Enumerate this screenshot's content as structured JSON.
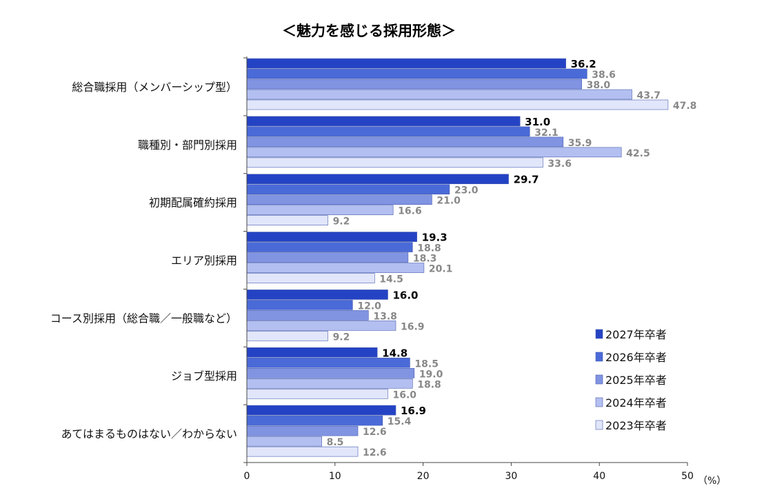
{
  "chart_data": {
    "type": "bar",
    "orientation": "horizontal",
    "title": "＜魅力を感じる採用形態＞",
    "unit_label": "（%）",
    "xlim": [
      0,
      50
    ],
    "xticks": [
      0,
      10,
      20,
      30,
      40,
      50
    ],
    "categories": [
      "総合職採用（メンバーシップ型）",
      "職種別・部門別採用",
      "初期配属確約採用",
      "エリア別採用",
      "コース別採用（総合職／一般職など）",
      "ジョブ型採用",
      "あてはまるものはない／わからない"
    ],
    "series": [
      {
        "name": "2027年卒者",
        "color": "#2443c4",
        "values": [
          36.2,
          31.0,
          29.7,
          19.3,
          16.0,
          14.8,
          16.9
        ]
      },
      {
        "name": "2026年卒者",
        "color": "#4a6ad8",
        "values": [
          38.6,
          32.1,
          23.0,
          18.8,
          12.0,
          18.5,
          15.4
        ]
      },
      {
        "name": "2025年卒者",
        "color": "#8094e2",
        "values": [
          38.0,
          35.9,
          21.0,
          18.3,
          13.8,
          19.0,
          12.6
        ]
      },
      {
        "name": "2024年卒者",
        "color": "#b3bff0",
        "values": [
          43.7,
          42.5,
          16.6,
          20.1,
          16.9,
          18.8,
          8.5
        ]
      },
      {
        "name": "2023年卒者",
        "color": "#e1e6fa",
        "values": [
          47.8,
          33.6,
          9.2,
          14.5,
          9.2,
          16.0,
          12.6
        ]
      }
    ],
    "legend_position": "right"
  }
}
